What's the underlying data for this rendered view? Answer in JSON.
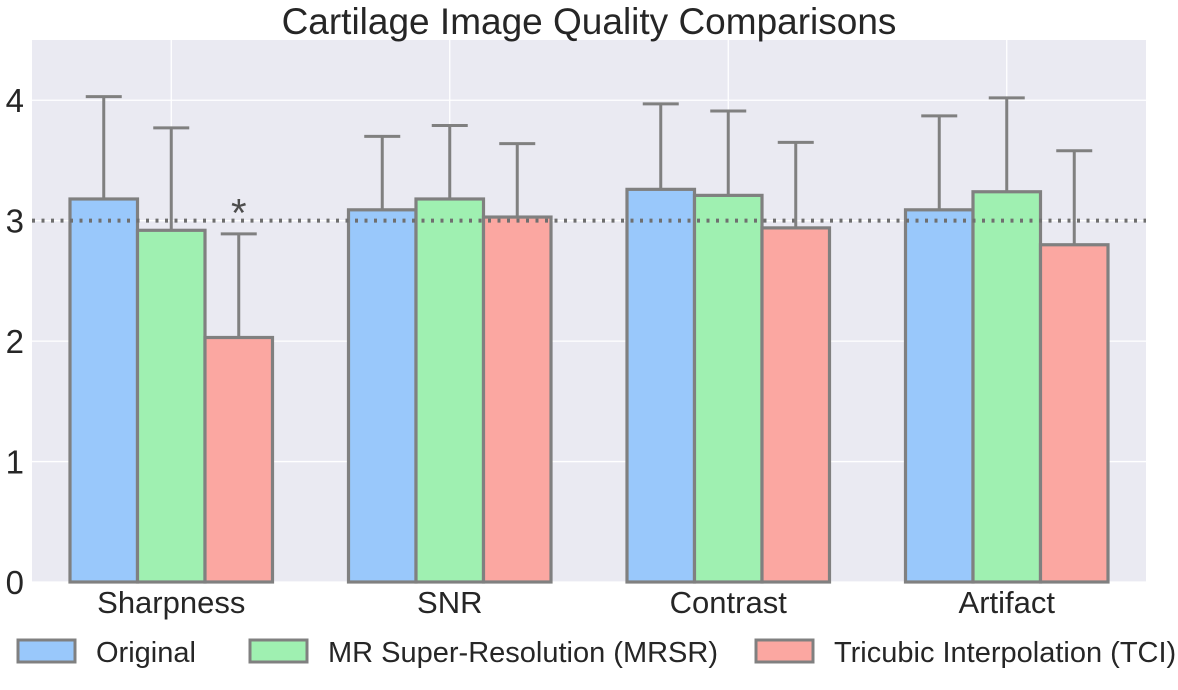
{
  "chart_data": {
    "type": "bar",
    "title": "Cartilage Image Quality Comparisons",
    "xlabel": "",
    "ylabel": "",
    "categories": [
      "Sharpness",
      "SNR",
      "Contrast",
      "Artifact"
    ],
    "series": [
      {
        "name": "Original",
        "color": "#99c8fb",
        "values": [
          3.18,
          3.09,
          3.26,
          3.09
        ],
        "errors": [
          0.85,
          0.61,
          0.71,
          0.78
        ]
      },
      {
        "name": "MR Super-Resolution (MRSR)",
        "color": "#9ff0b1",
        "values": [
          2.92,
          3.18,
          3.21,
          3.24
        ],
        "errors": [
          0.85,
          0.61,
          0.7,
          0.78
        ]
      },
      {
        "name": "Tricubic Interpolation (TCI)",
        "color": "#fba7a1",
        "values": [
          2.03,
          3.03,
          2.94,
          2.8
        ],
        "errors": [
          0.86,
          0.61,
          0.71,
          0.78
        ]
      }
    ],
    "ylim": [
      0,
      4.5
    ],
    "yticks": [
      "0",
      "1",
      "2",
      "3",
      "4"
    ],
    "reference_line": 3,
    "annotations": [
      {
        "text": "*",
        "category": "Sharpness",
        "series": "Tricubic Interpolation (TCI)",
        "y": 3.15
      }
    ],
    "grid": true,
    "legend_position": "bottom"
  }
}
